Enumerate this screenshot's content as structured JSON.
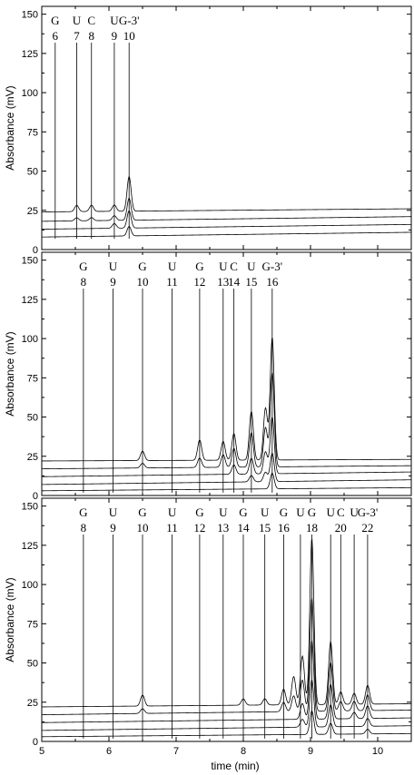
{
  "chart_data": {
    "type": "line",
    "xlabel": "time (min)",
    "xlim": [
      5,
      10.5
    ],
    "xticks": [
      "5",
      "6",
      "7",
      "8",
      "9",
      "10"
    ],
    "panels": [
      {
        "ylabel": "Absorbance (mV)",
        "ylim": [
          0,
          155
        ],
        "yticks": [
          "0",
          "25",
          "50",
          "75",
          "100",
          "125",
          "150"
        ],
        "markers": [
          {
            "letter": "G",
            "number": "6",
            "t": 5.2
          },
          {
            "letter": "U",
            "number": "7",
            "t": 5.52
          },
          {
            "letter": "C",
            "number": "8",
            "t": 5.74
          },
          {
            "letter": "U",
            "number": "9",
            "t": 6.08
          },
          {
            "letter": "G-3'",
            "number": "10",
            "t": 6.3
          }
        ],
        "traces": [
          {
            "baseline": [
              [
                5,
                24
              ],
              [
                10.5,
                26
              ]
            ],
            "peaks": [
              [
                5.52,
                4
              ],
              [
                5.74,
                4
              ],
              [
                6.08,
                4
              ],
              [
                6.3,
                22
              ]
            ]
          },
          {
            "baseline": [
              [
                5,
                18
              ],
              [
                10.5,
                21
              ]
            ],
            "peaks": [
              [
                5.52,
                2
              ],
              [
                5.74,
                2
              ],
              [
                6.08,
                3
              ],
              [
                6.3,
                14
              ]
            ]
          },
          {
            "baseline": [
              [
                5,
                13
              ],
              [
                10.5,
                16
              ]
            ],
            "peaks": [
              [
                6.08,
                3
              ],
              [
                6.3,
                11
              ]
            ]
          },
          {
            "baseline": [
              [
                5,
                8
              ],
              [
                10.5,
                11
              ]
            ],
            "peaks": [
              [
                6.3,
                6
              ]
            ]
          }
        ]
      },
      {
        "ylabel": "Absorbance (mV)",
        "ylim": [
          0,
          155
        ],
        "yticks": [
          "0",
          "25",
          "50",
          "75",
          "100",
          "125",
          "150"
        ],
        "markers": [
          {
            "letter": "G",
            "number": "8",
            "t": 5.62
          },
          {
            "letter": "U",
            "number": "9",
            "t": 6.06
          },
          {
            "letter": "G",
            "number": "10",
            "t": 6.5
          },
          {
            "letter": "U",
            "number": "11",
            "t": 6.94
          },
          {
            "letter": "G",
            "number": "12",
            "t": 7.35
          },
          {
            "letter": "U",
            "number": "13",
            "t": 7.7
          },
          {
            "letter": "C",
            "number": "14",
            "t": 7.86
          },
          {
            "letter": "U",
            "number": "15",
            "t": 8.12
          },
          {
            "letter": "G-3'",
            "number": "16",
            "t": 8.43
          }
        ],
        "traces": [
          {
            "baseline": [
              [
                5,
                22
              ],
              [
                10.5,
                23
              ]
            ],
            "peaks": [
              [
                6.5,
                6
              ],
              [
                7.35,
                13
              ],
              [
                7.7,
                12
              ],
              [
                7.86,
                17
              ],
              [
                8.12,
                31
              ],
              [
                8.33,
                33
              ],
              [
                8.43,
                78
              ]
            ]
          },
          {
            "baseline": [
              [
                5,
                17
              ],
              [
                10.5,
                19
              ]
            ],
            "peaks": [
              [
                6.5,
                3
              ],
              [
                7.35,
                6
              ],
              [
                7.7,
                8
              ],
              [
                7.86,
                12
              ],
              [
                8.12,
                22
              ],
              [
                8.33,
                25
              ],
              [
                8.43,
                60
              ]
            ]
          },
          {
            "baseline": [
              [
                5,
                12
              ],
              [
                10.5,
                15
              ]
            ],
            "peaks": [
              [
                7.86,
                6
              ],
              [
                8.12,
                10
              ],
              [
                8.33,
                14
              ],
              [
                8.43,
                36
              ]
            ]
          },
          {
            "baseline": [
              [
                5,
                7
              ],
              [
                10.5,
                10
              ]
            ],
            "peaks": [
              [
                8.12,
                4
              ],
              [
                8.33,
                6
              ],
              [
                8.43,
                18
              ]
            ]
          },
          {
            "baseline": [
              [
                5,
                3
              ],
              [
                10.5,
                5
              ]
            ],
            "peaks": [
              [
                8.43,
                10
              ]
            ]
          }
        ]
      },
      {
        "ylabel": "Absorbance (mV)",
        "ylim": [
          0,
          155
        ],
        "yticks": [
          "0",
          "25",
          "50",
          "75",
          "100",
          "125",
          "150"
        ],
        "markers": [
          {
            "letter": "G",
            "number": "8",
            "t": 5.62
          },
          {
            "letter": "U",
            "number": "9",
            "t": 6.06
          },
          {
            "letter": "G",
            "number": "10",
            "t": 6.5
          },
          {
            "letter": "U",
            "number": "11",
            "t": 6.94
          },
          {
            "letter": "G",
            "number": "12",
            "t": 7.35
          },
          {
            "letter": "U",
            "number": "13",
            "t": 7.7
          },
          {
            "letter": "G",
            "number": "14",
            "t": 8.0
          },
          {
            "letter": "U",
            "number": "15",
            "t": 8.32
          },
          {
            "letter": "G",
            "number": "16",
            "t": 8.6
          },
          {
            "letter": "U",
            "number": "",
            "t": 8.85
          },
          {
            "letter": "G",
            "number": "18",
            "t": 9.02
          },
          {
            "letter": "U",
            "number": "",
            "t": 9.3
          },
          {
            "letter": "C",
            "number": "20",
            "t": 9.45
          },
          {
            "letter": "U",
            "number": "",
            "t": 9.65
          },
          {
            "letter": "G-3'",
            "number": "22",
            "t": 9.85
          }
        ],
        "traces": [
          {
            "baseline": [
              [
                5,
                22
              ],
              [
                10.5,
                24
              ]
            ],
            "peaks": [
              [
                6.5,
                7
              ],
              [
                8.0,
                4
              ],
              [
                8.32,
                4
              ],
              [
                8.6,
                10
              ],
              [
                8.75,
                18
              ],
              [
                8.88,
                31
              ],
              [
                9.02,
                106
              ],
              [
                9.3,
                40
              ],
              [
                9.45,
                8
              ],
              [
                9.65,
                7
              ],
              [
                9.85,
                12
              ]
            ]
          },
          {
            "baseline": [
              [
                5,
                17
              ],
              [
                10.5,
                20
              ]
            ],
            "peaks": [
              [
                6.5,
                3
              ],
              [
                8.6,
                6
              ],
              [
                8.75,
                10
              ],
              [
                8.88,
                20
              ],
              [
                9.02,
                72
              ],
              [
                9.3,
                31
              ],
              [
                9.45,
                6
              ],
              [
                9.65,
                6
              ],
              [
                9.85,
                10
              ]
            ]
          },
          {
            "baseline": [
              [
                5,
                12
              ],
              [
                10.5,
                15
              ]
            ],
            "peaks": [
              [
                8.88,
                10
              ],
              [
                9.02,
                50
              ],
              [
                9.3,
                22
              ],
              [
                9.65,
                4
              ],
              [
                9.85,
                8
              ]
            ]
          },
          {
            "baseline": [
              [
                5,
                7
              ],
              [
                10.5,
                10
              ]
            ],
            "peaks": [
              [
                8.88,
                5
              ],
              [
                9.02,
                30
              ],
              [
                9.3,
                14
              ],
              [
                9.85,
                5
              ]
            ]
          },
          {
            "baseline": [
              [
                5,
                3
              ],
              [
                10.5,
                5
              ]
            ],
            "peaks": [
              [
                9.02,
                15
              ],
              [
                9.3,
                7
              ],
              [
                9.85,
                3
              ]
            ]
          }
        ]
      }
    ]
  }
}
